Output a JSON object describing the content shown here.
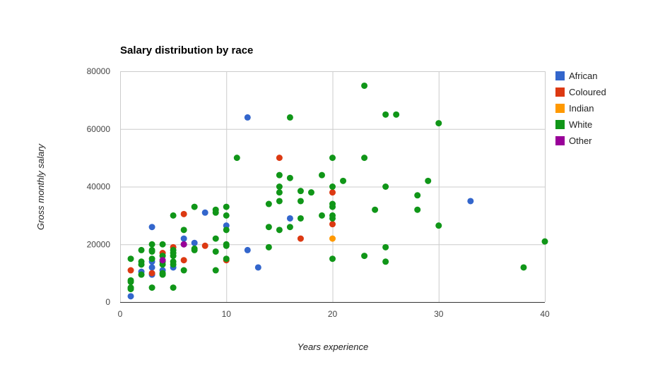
{
  "chart_data": {
    "type": "scatter",
    "title": "Salary distribution by race",
    "xlabel": "Years experience",
    "ylabel": "Gross monthly salary",
    "xlim": [
      0,
      40
    ],
    "ylim": [
      0,
      80000
    ],
    "x_ticks": [
      0,
      10,
      20,
      30,
      40
    ],
    "y_ticks": [
      0,
      20000,
      40000,
      60000,
      80000
    ],
    "grid": true,
    "legend_position": "right",
    "series": [
      {
        "name": "African",
        "color": "#3366cc",
        "points": [
          [
            1,
            2000
          ],
          [
            2,
            10500
          ],
          [
            3,
            26000
          ],
          [
            3,
            14000
          ],
          [
            3,
            12000
          ],
          [
            3,
            9500
          ],
          [
            4,
            11000
          ],
          [
            5,
            12000
          ],
          [
            6,
            22000
          ],
          [
            7,
            20500
          ],
          [
            8,
            31000
          ],
          [
            10,
            26500
          ],
          [
            12,
            64000
          ],
          [
            12,
            18000
          ],
          [
            13,
            12000
          ],
          [
            16,
            29000
          ],
          [
            33,
            35000
          ]
        ]
      },
      {
        "name": "Coloured",
        "color": "#dc3912",
        "points": [
          [
            1,
            11000
          ],
          [
            3,
            10000
          ],
          [
            4,
            17000
          ],
          [
            5,
            19000
          ],
          [
            6,
            30500
          ],
          [
            6,
            14500
          ],
          [
            8,
            19500
          ],
          [
            10,
            14500
          ],
          [
            15,
            50000
          ],
          [
            17,
            22000
          ],
          [
            20,
            38000
          ],
          [
            20,
            27000
          ]
        ]
      },
      {
        "name": "Indian",
        "color": "#ff9900",
        "points": [
          [
            20,
            22000
          ]
        ]
      },
      {
        "name": "White",
        "color": "#109618",
        "points": [
          [
            1,
            15000
          ],
          [
            1,
            7500
          ],
          [
            1,
            7000
          ],
          [
            1,
            5000
          ],
          [
            1,
            4500
          ],
          [
            2,
            18000
          ],
          [
            2,
            14000
          ],
          [
            2,
            13000
          ],
          [
            2,
            9500
          ],
          [
            3,
            20000
          ],
          [
            3,
            17500
          ],
          [
            3,
            18000
          ],
          [
            3,
            15000
          ],
          [
            3,
            5000
          ],
          [
            4,
            20000
          ],
          [
            4,
            16000
          ],
          [
            4,
            14000
          ],
          [
            4,
            13000
          ],
          [
            4,
            10000
          ],
          [
            4,
            9500
          ],
          [
            5,
            30000
          ],
          [
            5,
            18000
          ],
          [
            5,
            17000
          ],
          [
            5,
            16000
          ],
          [
            5,
            14000
          ],
          [
            5,
            13000
          ],
          [
            5,
            5000
          ],
          [
            6,
            25000
          ],
          [
            6,
            20000
          ],
          [
            6,
            11000
          ],
          [
            7,
            33000
          ],
          [
            7,
            18500
          ],
          [
            7,
            18000
          ],
          [
            9,
            32000
          ],
          [
            9,
            31000
          ],
          [
            9,
            22000
          ],
          [
            9,
            17500
          ],
          [
            9,
            11000
          ],
          [
            10,
            33000
          ],
          [
            10,
            30000
          ],
          [
            10,
            25000
          ],
          [
            10,
            20000
          ],
          [
            10,
            19500
          ],
          [
            10,
            15000
          ],
          [
            11,
            50000
          ],
          [
            14,
            34000
          ],
          [
            14,
            26000
          ],
          [
            14,
            19000
          ],
          [
            15,
            44000
          ],
          [
            15,
            40000
          ],
          [
            15,
            38000
          ],
          [
            15,
            35000
          ],
          [
            15,
            25000
          ],
          [
            16,
            64000
          ],
          [
            16,
            43000
          ],
          [
            16,
            26000
          ],
          [
            17,
            38500
          ],
          [
            17,
            35000
          ],
          [
            17,
            29000
          ],
          [
            18,
            38000
          ],
          [
            19,
            44000
          ],
          [
            19,
            30000
          ],
          [
            20,
            50000
          ],
          [
            20,
            40000
          ],
          [
            20,
            34000
          ],
          [
            20,
            33000
          ],
          [
            20,
            30000
          ],
          [
            20,
            29000
          ],
          [
            20,
            15000
          ],
          [
            21,
            42000
          ],
          [
            23,
            75000
          ],
          [
            23,
            50000
          ],
          [
            23,
            16000
          ],
          [
            24,
            32000
          ],
          [
            25,
            65000
          ],
          [
            25,
            40000
          ],
          [
            25,
            19000
          ],
          [
            25,
            14000
          ],
          [
            26,
            65000
          ],
          [
            28,
            37000
          ],
          [
            28,
            32000
          ],
          [
            29,
            42000
          ],
          [
            30,
            62000
          ],
          [
            30,
            26500
          ],
          [
            38,
            12000
          ],
          [
            40,
            21000
          ]
        ]
      },
      {
        "name": "Other",
        "color": "#990099",
        "points": [
          [
            4,
            14500
          ],
          [
            6,
            20000
          ]
        ]
      }
    ]
  }
}
